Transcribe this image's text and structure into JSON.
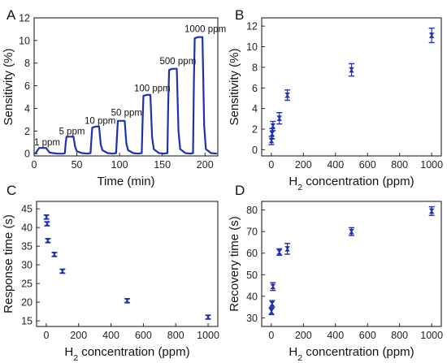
{
  "colors": {
    "series": "#1f2fb0",
    "axis": "#222222",
    "text": "#111111"
  },
  "chart_data": [
    {
      "panel": "A",
      "type": "line",
      "xlabel": "Time (min)",
      "ylabel": "Sensitivity (%)",
      "xlim": [
        0,
        215
      ],
      "ylim": [
        -0.2,
        12
      ],
      "xticks": [
        0,
        50,
        100,
        150,
        200
      ],
      "yticks": [
        0,
        2,
        4,
        6,
        8,
        10,
        12
      ],
      "x": [
        0,
        2,
        4,
        6,
        10,
        14,
        16,
        18,
        22,
        28,
        34,
        36,
        37,
        38,
        42,
        46,
        48,
        50,
        56,
        62,
        66,
        67,
        68,
        72,
        76,
        78,
        80,
        86,
        92,
        96,
        97,
        98,
        102,
        106,
        108,
        110,
        116,
        122,
        126,
        127,
        128,
        132,
        136,
        138,
        140,
        146,
        152,
        156,
        157,
        158,
        162,
        167,
        169,
        171,
        177,
        183,
        186,
        187,
        188,
        192,
        197,
        199,
        201,
        207,
        214
      ],
      "y": [
        0.0,
        0.05,
        0.3,
        0.5,
        0.5,
        0.5,
        0.3,
        0.1,
        0.05,
        0.0,
        0.0,
        0.05,
        1.0,
        1.5,
        1.5,
        1.5,
        0.6,
        0.2,
        0.05,
        0.0,
        0.05,
        1.2,
        2.3,
        2.4,
        2.4,
        0.8,
        0.3,
        0.05,
        0.0,
        0.05,
        1.6,
        2.9,
        2.9,
        2.9,
        0.9,
        0.3,
        0.05,
        0.0,
        0.05,
        3.0,
        5.1,
        5.2,
        5.2,
        1.5,
        0.4,
        0.05,
        0.0,
        0.05,
        4.5,
        7.4,
        7.5,
        7.5,
        2.0,
        0.4,
        0.05,
        0.0,
        0.05,
        6.5,
        10.2,
        10.3,
        10.3,
        2.5,
        0.4,
        0.05,
        0.0
      ],
      "annotations": [
        {
          "text": "1 ppm",
          "x": 0,
          "y": 0.75
        },
        {
          "text": "5 ppm",
          "x": 29,
          "y": 1.7
        },
        {
          "text": "10 ppm",
          "x": 59,
          "y": 2.65
        },
        {
          "text": "50 ppm",
          "x": 90,
          "y": 3.35
        },
        {
          "text": "100 ppm",
          "x": 117,
          "y": 5.5
        },
        {
          "text": "500 ppm",
          "x": 147,
          "y": 7.9
        },
        {
          "text": "1000 ppm",
          "x": 176,
          "y": 10.75
        }
      ]
    },
    {
      "panel": "B",
      "type": "scatter",
      "xlabel_main": "H",
      "xlabel_sub": "2",
      "xlabel_rest": " concentration (ppm)",
      "ylabel": "Sensitivity (%)",
      "xlim": [
        -60,
        1060
      ],
      "ylim": [
        -0.6,
        12.8
      ],
      "xticks": [
        0,
        200,
        400,
        600,
        800,
        1000
      ],
      "yticks": [
        0,
        2,
        4,
        6,
        8,
        10,
        12
      ],
      "x": [
        1,
        5,
        10,
        50,
        100,
        500,
        1000
      ],
      "y": [
        0.9,
        1.55,
        2.3,
        3.05,
        5.3,
        7.75,
        11.1
      ],
      "err": [
        0.4,
        0.5,
        0.45,
        0.55,
        0.5,
        0.6,
        0.7
      ]
    },
    {
      "panel": "C",
      "type": "scatter",
      "xlabel_main": "H",
      "xlabel_sub": "2",
      "xlabel_rest": " concentration (ppm)",
      "ylabel": "Response time (s)",
      "xlim": [
        -60,
        1060
      ],
      "ylim": [
        13.5,
        47
      ],
      "xticks": [
        0,
        200,
        400,
        600,
        800,
        1000
      ],
      "yticks": [
        15,
        20,
        25,
        30,
        35,
        40,
        45
      ],
      "x": [
        1,
        5,
        10,
        50,
        100,
        500,
        1000
      ],
      "y": [
        42.8,
        41,
        36.5,
        32.8,
        28.3,
        20.4,
        16
      ],
      "err": [
        0.5,
        0.5,
        0.5,
        0.5,
        0.5,
        0.5,
        0.5
      ]
    },
    {
      "panel": "D",
      "type": "scatter",
      "xlabel_main": "H",
      "xlabel_sub": "2",
      "xlabel_rest": " concentration (ppm)",
      "ylabel": "Recovery time (s)",
      "xlim": [
        -60,
        1060
      ],
      "ylim": [
        26,
        84
      ],
      "xticks": [
        0,
        200,
        400,
        600,
        800,
        1000
      ],
      "yticks": [
        30,
        40,
        50,
        60,
        70,
        80
      ],
      "x": [
        1,
        5,
        10,
        50,
        100,
        500,
        1000
      ],
      "y": [
        33,
        36.5,
        44.5,
        60.5,
        62,
        70,
        79.5
      ],
      "err": [
        1.5,
        1.5,
        1.8,
        1.5,
        2.5,
        1.8,
        2.0
      ]
    }
  ]
}
